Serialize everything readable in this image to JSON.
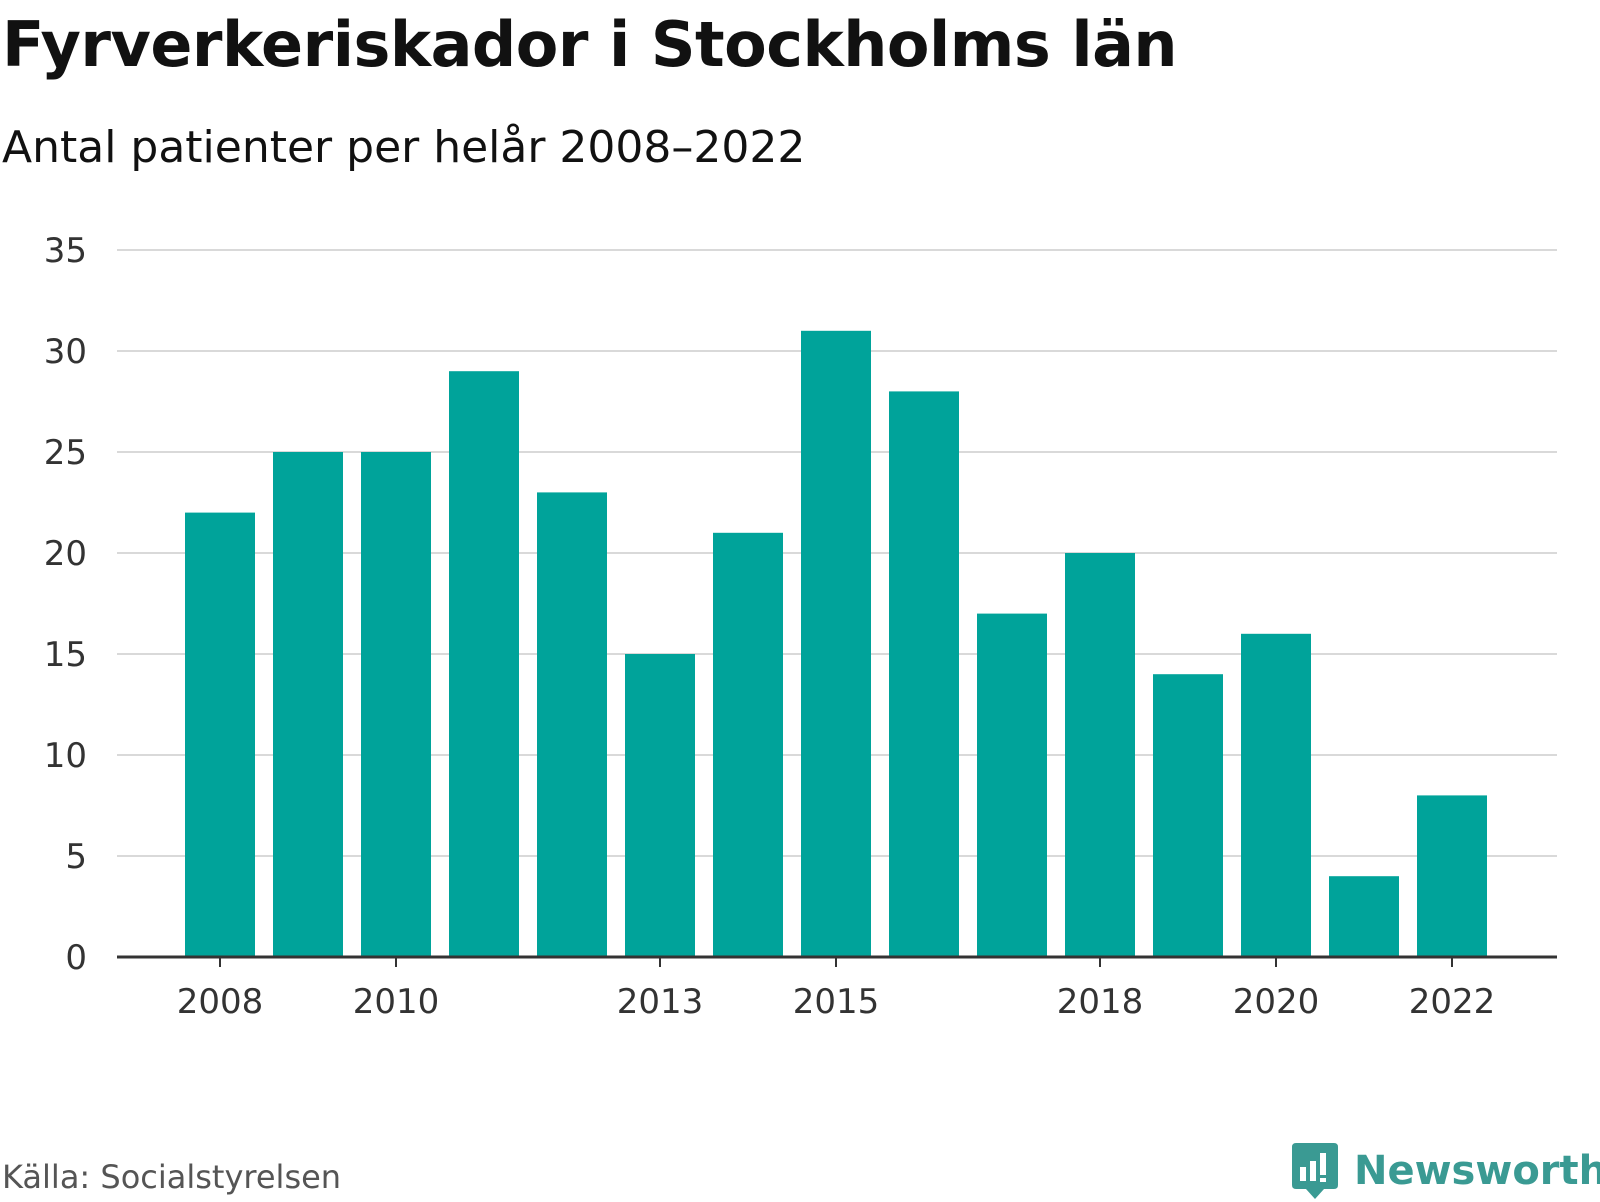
{
  "chart_data": {
    "type": "bar",
    "title": "Fyrverkeriskador i Stockholms län",
    "subtitle": "Antal patienter per helår 2008–2022",
    "categories": [
      "2008",
      "2009",
      "2010",
      "2011",
      "2012",
      "2013",
      "2014",
      "2015",
      "2016",
      "2017",
      "2018",
      "2019",
      "2020",
      "2021",
      "2022"
    ],
    "values": [
      22,
      25,
      25,
      29,
      23,
      15,
      21,
      31,
      28,
      17,
      20,
      14,
      16,
      4,
      8
    ],
    "x_tick_labels": [
      "2008",
      "2010",
      "2013",
      "2015",
      "2018",
      "2020",
      "2022"
    ],
    "y_ticks": [
      0,
      5,
      10,
      15,
      20,
      25,
      30,
      35
    ],
    "ylim": [
      0,
      35
    ],
    "xlabel": "",
    "ylabel": "",
    "grid": true,
    "bar_color": "#00a39a"
  },
  "footer": {
    "source": "Källa: Socialstyrelsen",
    "brand": "Newsworthy",
    "brand_icon": "newsworthy-logo-icon"
  }
}
